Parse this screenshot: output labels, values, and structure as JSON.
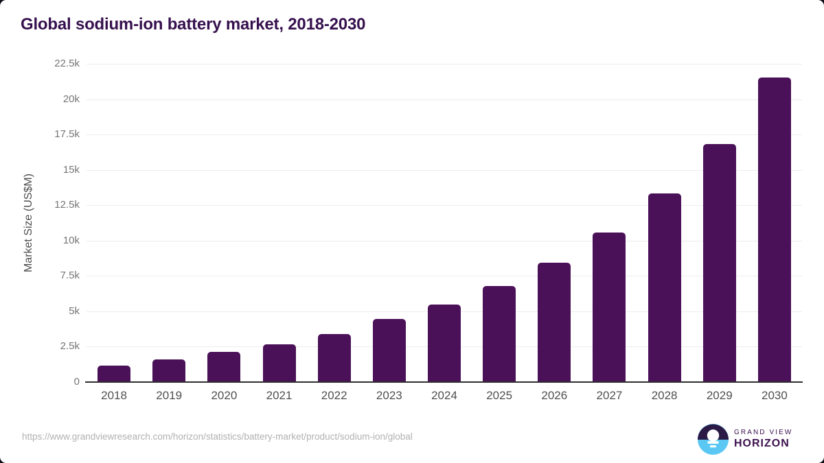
{
  "title": "Global sodium-ion battery market, 2018-2030",
  "chart_data": {
    "type": "bar",
    "title": "Global sodium-ion battery market, 2018-2030",
    "categories": [
      "2018",
      "2019",
      "2020",
      "2021",
      "2022",
      "2023",
      "2024",
      "2025",
      "2026",
      "2027",
      "2028",
      "2029",
      "2030"
    ],
    "values": [
      1150,
      1600,
      2150,
      2650,
      3400,
      4450,
      5500,
      6800,
      8450,
      10550,
      13350,
      16850,
      21550
    ],
    "xlabel": "",
    "ylabel": "Market Size (US$M)",
    "ylim": [
      0,
      22500
    ],
    "y_ticks": [
      {
        "value": 0,
        "label": "0"
      },
      {
        "value": 2500,
        "label": "2.5k"
      },
      {
        "value": 5000,
        "label": "5k"
      },
      {
        "value": 7500,
        "label": "7.5k"
      },
      {
        "value": 10000,
        "label": "10k"
      },
      {
        "value": 12500,
        "label": "12.5k"
      },
      {
        "value": 15000,
        "label": "15k"
      },
      {
        "value": 17500,
        "label": "17.5k"
      },
      {
        "value": 20000,
        "label": "20k"
      },
      {
        "value": 22500,
        "label": "22.5k"
      }
    ],
    "grid": true,
    "legend_position": "none",
    "bar_color": "#4a1158"
  },
  "footer": {
    "source_url": "https://www.grandviewresearch.com/horizon/statistics/battery-market/product/sodium-ion/global",
    "logo": {
      "line1": "GRAND VIEW",
      "line2": "HORIZON",
      "icon": "horizon-sun-over-water-icon"
    }
  },
  "colors": {
    "title": "#36104e",
    "bar": "#4a1158",
    "gridline": "#ececec",
    "axis_line": "#2e2e2e",
    "y_tick_label": "#767676",
    "x_tick_label": "#4f4f4f",
    "source_url": "#b1b1b1",
    "logo_text": "#3c1150",
    "logo_dark": "#2a1a45",
    "logo_blue": "#5bc8f3"
  }
}
